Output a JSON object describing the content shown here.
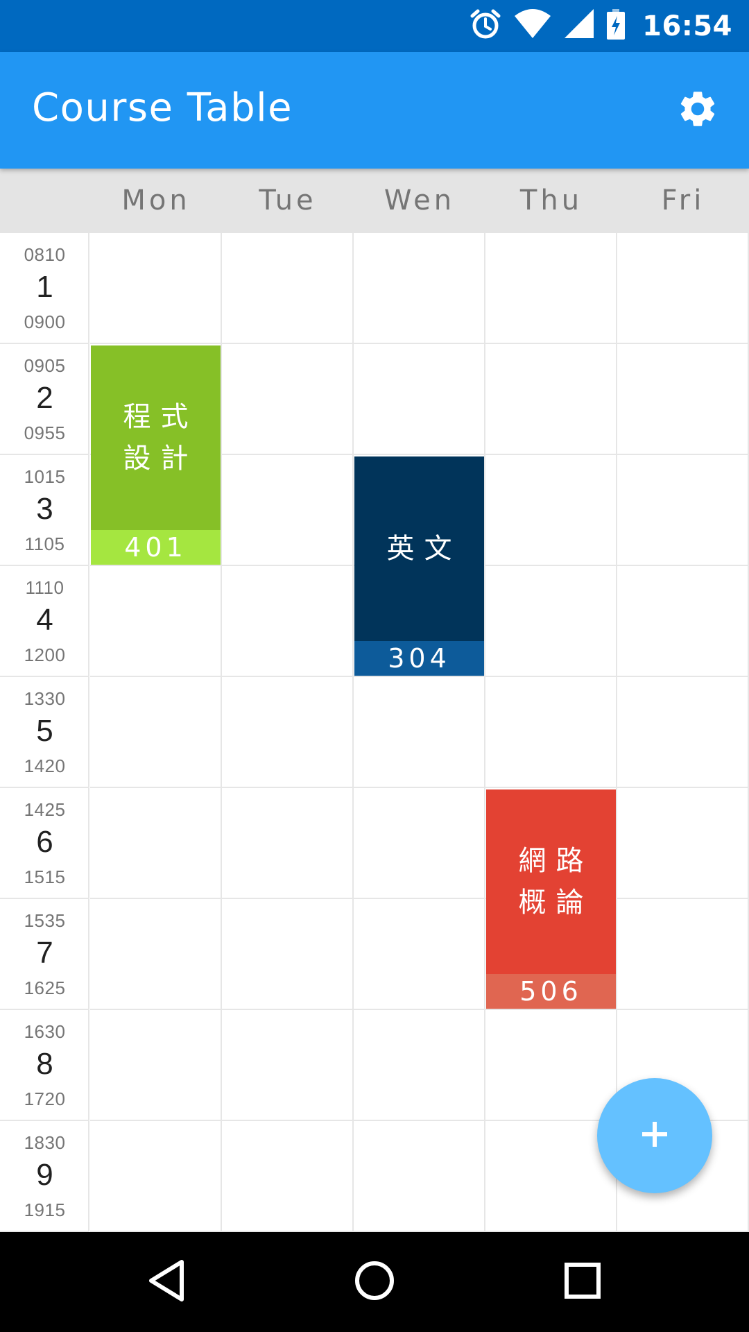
{
  "status_bar": {
    "time": "16:54",
    "icons": [
      "alarm-icon",
      "wifi-icon",
      "cellular-signal-icon",
      "battery-charging-icon"
    ],
    "background": "#0069c0"
  },
  "app_bar": {
    "title": "Course Table",
    "settings_icon": "gear-icon",
    "background": "#2196f3"
  },
  "days": [
    "Mon",
    "Tue",
    "Wen",
    "Thu",
    "Fri"
  ],
  "periods": [
    {
      "index": "1",
      "start": "0810",
      "end": "0900"
    },
    {
      "index": "2",
      "start": "0905",
      "end": "0955"
    },
    {
      "index": "3",
      "start": "1015",
      "end": "1105"
    },
    {
      "index": "4",
      "start": "1110",
      "end": "1200"
    },
    {
      "index": "5",
      "start": "1330",
      "end": "1420"
    },
    {
      "index": "6",
      "start": "1425",
      "end": "1515"
    },
    {
      "index": "7",
      "start": "1535",
      "end": "1625"
    },
    {
      "index": "8",
      "start": "1630",
      "end": "1720"
    },
    {
      "index": "9",
      "start": "1830",
      "end": "1915"
    }
  ],
  "courses": [
    {
      "name": "程式設計",
      "room": "401",
      "day": 0,
      "period_start": 2,
      "period_end": 3,
      "color": "#86c027",
      "room_color": "#a5e640"
    },
    {
      "name": "英文",
      "room": "304",
      "day": 2,
      "period_start": 3,
      "period_end": 4,
      "color": "#01345a",
      "room_color": "#0d5b9a"
    },
    {
      "name": "網路概論",
      "room": "506",
      "day": 3,
      "period_start": 6,
      "period_end": 7,
      "color": "#e34233",
      "room_color": "#e06651"
    }
  ],
  "fab": {
    "icon": "plus-icon",
    "color": "#64c1ff"
  },
  "nav_bar": {
    "icons": [
      "back-icon",
      "home-icon",
      "recents-icon"
    ]
  }
}
